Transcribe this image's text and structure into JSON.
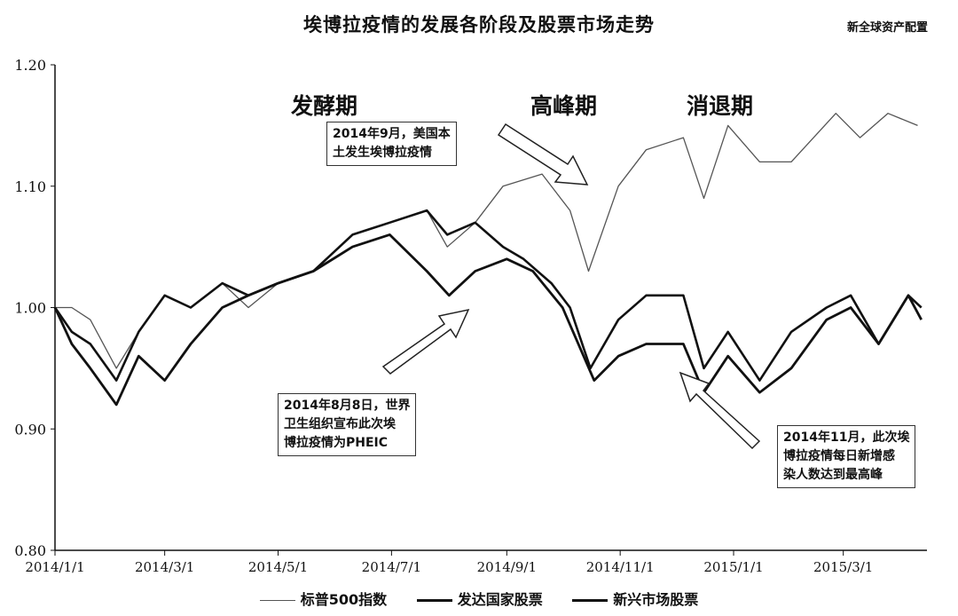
{
  "source": "新全球资产配置",
  "chart_data": {
    "type": "line",
    "title": "埃博拉疫情的发展各阶段及股票市场走势",
    "ylim": [
      0.8,
      1.2
    ],
    "y_ticks": [
      "1.20",
      "1.10",
      "1.00",
      "0.90",
      "0.80"
    ],
    "x_ticks": [
      "2014/1/1",
      "2014/3/1",
      "2014/5/1",
      "2014/7/1",
      "2014/9/1",
      "2014/11/1",
      "2015/1/1",
      "2015/3/1"
    ],
    "x_range": [
      "2014-01-01",
      "2015-04-15"
    ],
    "phases": [
      "发酵期",
      "高峰期",
      "消退期"
    ],
    "annotations": [
      "2014年9月，美国本\n土发生埃博拉疫情",
      "2014年8月8日，世界\n卫生组织宣布此次埃\n博拉疫情为PHEIC",
      "2014年11月，此次埃\n博拉疫情每日新增感\n染人数达到最高峰"
    ],
    "series": [
      {
        "name": "标普500指数",
        "color": "#555555",
        "points": [
          [
            "2014-01-01",
            1.0
          ],
          [
            "2014-01-10",
            1.0
          ],
          [
            "2014-01-20",
            0.99
          ],
          [
            "2014-02-03",
            0.95
          ],
          [
            "2014-02-15",
            0.98
          ],
          [
            "2014-03-01",
            1.01
          ],
          [
            "2014-03-15",
            1.0
          ],
          [
            "2014-04-01",
            1.02
          ],
          [
            "2014-04-15",
            1.0
          ],
          [
            "2014-05-01",
            1.02
          ],
          [
            "2014-05-20",
            1.03
          ],
          [
            "2014-06-10",
            1.06
          ],
          [
            "2014-06-30",
            1.07
          ],
          [
            "2014-07-20",
            1.08
          ],
          [
            "2014-07-31",
            1.05
          ],
          [
            "2014-08-15",
            1.07
          ],
          [
            "2014-08-30",
            1.1
          ],
          [
            "2014-09-20",
            1.11
          ],
          [
            "2014-10-05",
            1.08
          ],
          [
            "2014-10-15",
            1.03
          ],
          [
            "2014-10-31",
            1.1
          ],
          [
            "2014-11-15",
            1.13
          ],
          [
            "2014-12-05",
            1.14
          ],
          [
            "2014-12-16",
            1.09
          ],
          [
            "2014-12-29",
            1.15
          ],
          [
            "2015-01-15",
            1.12
          ],
          [
            "2015-02-01",
            1.12
          ],
          [
            "2015-02-25",
            1.16
          ],
          [
            "2015-03-10",
            1.14
          ],
          [
            "2015-03-25",
            1.16
          ],
          [
            "2015-04-10",
            1.15
          ]
        ]
      },
      {
        "name": "发达国家股票",
        "color": "#111111",
        "points": [
          [
            "2014-01-01",
            1.0
          ],
          [
            "2014-01-10",
            0.98
          ],
          [
            "2014-01-20",
            0.97
          ],
          [
            "2014-02-03",
            0.94
          ],
          [
            "2014-02-15",
            0.98
          ],
          [
            "2014-03-01",
            1.01
          ],
          [
            "2014-03-15",
            1.0
          ],
          [
            "2014-04-01",
            1.02
          ],
          [
            "2014-04-15",
            1.01
          ],
          [
            "2014-05-01",
            1.02
          ],
          [
            "2014-05-20",
            1.03
          ],
          [
            "2014-06-10",
            1.06
          ],
          [
            "2014-06-30",
            1.07
          ],
          [
            "2014-07-20",
            1.08
          ],
          [
            "2014-07-31",
            1.06
          ],
          [
            "2014-08-15",
            1.07
          ],
          [
            "2014-08-30",
            1.05
          ],
          [
            "2014-09-10",
            1.04
          ],
          [
            "2014-09-25",
            1.02
          ],
          [
            "2014-10-05",
            1.0
          ],
          [
            "2014-10-16",
            0.95
          ],
          [
            "2014-10-31",
            0.99
          ],
          [
            "2014-11-15",
            1.01
          ],
          [
            "2014-12-05",
            1.01
          ],
          [
            "2014-12-16",
            0.95
          ],
          [
            "2014-12-29",
            0.98
          ],
          [
            "2015-01-15",
            0.94
          ],
          [
            "2015-02-01",
            0.98
          ],
          [
            "2015-02-20",
            1.0
          ],
          [
            "2015-03-05",
            1.01
          ],
          [
            "2015-03-20",
            0.97
          ],
          [
            "2015-04-05",
            1.01
          ],
          [
            "2015-04-12",
            1.0
          ]
        ]
      },
      {
        "name": "新兴市场股票",
        "color": "#111111",
        "points": [
          [
            "2014-01-01",
            1.0
          ],
          [
            "2014-01-10",
            0.97
          ],
          [
            "2014-01-20",
            0.95
          ],
          [
            "2014-02-03",
            0.92
          ],
          [
            "2014-02-15",
            0.96
          ],
          [
            "2014-03-01",
            0.94
          ],
          [
            "2014-03-15",
            0.97
          ],
          [
            "2014-04-01",
            1.0
          ],
          [
            "2014-04-15",
            1.01
          ],
          [
            "2014-05-01",
            1.02
          ],
          [
            "2014-05-20",
            1.03
          ],
          [
            "2014-06-10",
            1.05
          ],
          [
            "2014-06-30",
            1.06
          ],
          [
            "2014-07-20",
            1.03
          ],
          [
            "2014-08-01",
            1.01
          ],
          [
            "2014-08-15",
            1.03
          ],
          [
            "2014-09-01",
            1.04
          ],
          [
            "2014-09-15",
            1.03
          ],
          [
            "2014-10-01",
            1.0
          ],
          [
            "2014-10-18",
            0.94
          ],
          [
            "2014-10-31",
            0.96
          ],
          [
            "2014-11-15",
            0.97
          ],
          [
            "2014-12-05",
            0.97
          ],
          [
            "2014-12-16",
            0.93
          ],
          [
            "2014-12-29",
            0.96
          ],
          [
            "2015-01-15",
            0.93
          ],
          [
            "2015-02-01",
            0.95
          ],
          [
            "2015-02-20",
            0.99
          ],
          [
            "2015-03-05",
            1.0
          ],
          [
            "2015-03-20",
            0.97
          ],
          [
            "2015-04-05",
            1.01
          ],
          [
            "2015-04-12",
            0.99
          ]
        ]
      }
    ]
  }
}
